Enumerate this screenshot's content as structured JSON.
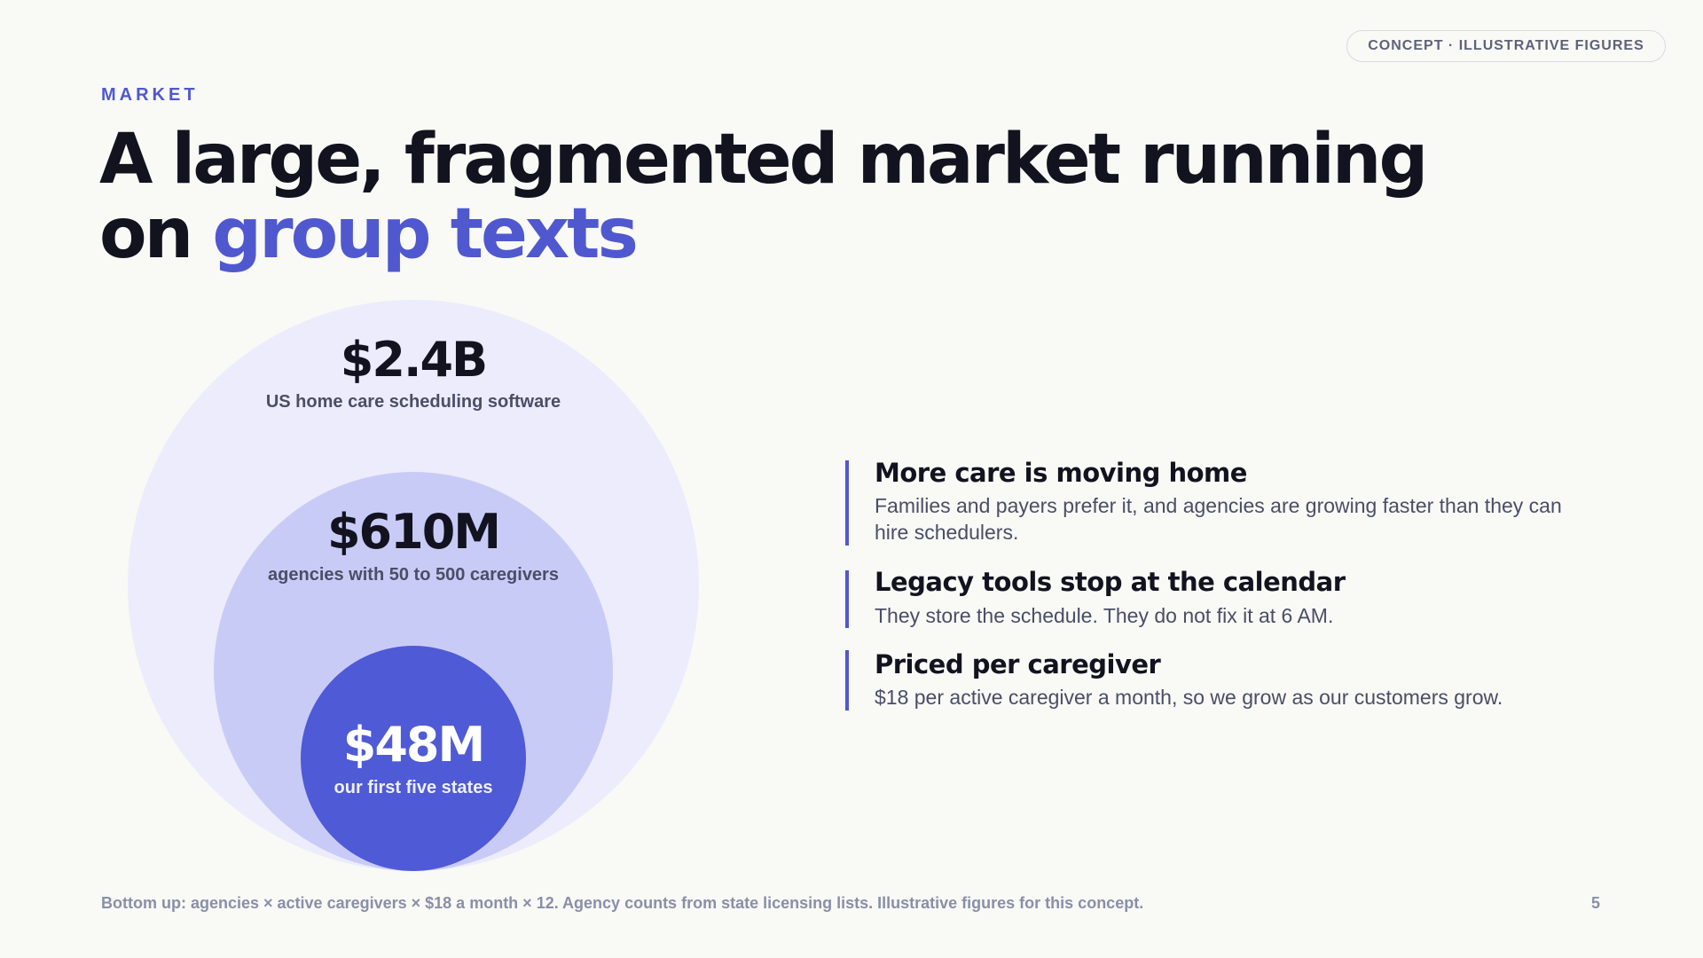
{
  "badge": "CONCEPT · ILLUSTRATIVE FIGURES",
  "header": {
    "eyebrow": "MARKET",
    "title_line1": "A large, fragmented market running",
    "title_line2_start": "on",
    "title_line2_accent": "group texts"
  },
  "circles": [
    {
      "value": "$2.4B",
      "label": "US home care scheduling software"
    },
    {
      "value": "$610M",
      "label": "agencies with 50 to 500 caregivers"
    },
    {
      "value": "$48M",
      "label": "our first five states"
    }
  ],
  "points": [
    {
      "title": "More care is moving home",
      "text": "Families and payers prefer it, and agencies are growing faster than they can hire schedulers."
    },
    {
      "title": "Legacy tools stop at the calendar",
      "text": "They store the schedule. They do not fix it at 6 AM."
    },
    {
      "title": "Priced per caregiver",
      "text": "$18 per active caregiver a month, so we grow as our customers grow."
    }
  ],
  "footer": {
    "note": "Bottom up: agencies × active caregivers × $18 a month × 12. Agency counts from state licensing lists. Illustrative figures for this concept.",
    "page": "5"
  }
}
